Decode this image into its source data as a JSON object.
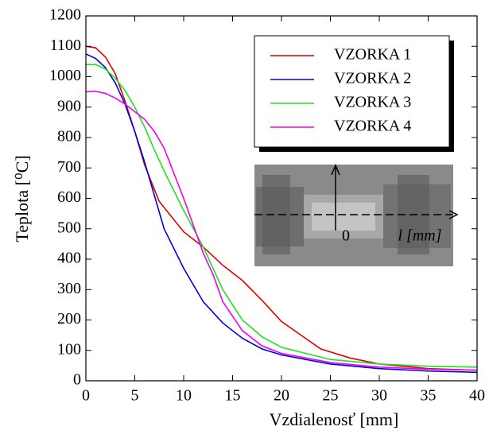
{
  "chart_data": {
    "type": "line",
    "xlabel": "Vzdialenosť [mm]",
    "ylabel": "Teplota [⁰C]",
    "xlim": [
      0,
      40
    ],
    "xticks": [
      0,
      5,
      10,
      15,
      20,
      25,
      30,
      35,
      40
    ],
    "ylim": [
      0,
      1200
    ],
    "yticks": [
      0,
      100,
      200,
      300,
      400,
      500,
      600,
      700,
      800,
      900,
      1000,
      1100,
      1200
    ],
    "grid": false,
    "legend": "upper right",
    "annotations": [
      "0",
      "l [mm]"
    ],
    "series": [
      {
        "name": "VZORKA  1",
        "color": "#e00000",
        "x": [
          0,
          1,
          2,
          3,
          4,
          5,
          6,
          7.5,
          10,
          12,
          14,
          16,
          18,
          20,
          22,
          24,
          27,
          30,
          35,
          40
        ],
        "values": [
          1100,
          1095,
          1065,
          1010,
          920,
          820,
          710,
          590,
          490,
          440,
          380,
          330,
          265,
          195,
          150,
          105,
          75,
          55,
          40,
          35
        ]
      },
      {
        "name": "VZORKA  2",
        "color": "#0000e0",
        "x": [
          0,
          1,
          2,
          3,
          4,
          5,
          6,
          7,
          8,
          10,
          12,
          14,
          16,
          18,
          20,
          25,
          30,
          35,
          40
        ],
        "values": [
          1075,
          1060,
          1030,
          980,
          910,
          820,
          720,
          610,
          500,
          370,
          260,
          190,
          140,
          105,
          85,
          55,
          40,
          32,
          28
        ]
      },
      {
        "name": "VZORKA  3",
        "color": "#20e020",
        "x": [
          0,
          1,
          2,
          3,
          4,
          5,
          6,
          7,
          8,
          10,
          12,
          14,
          16,
          18,
          20,
          25,
          30,
          35,
          40
        ],
        "values": [
          1040,
          1040,
          1025,
          995,
          955,
          900,
          835,
          760,
          690,
          560,
          440,
          300,
          200,
          145,
          110,
          70,
          55,
          48,
          45
        ]
      },
      {
        "name": "VZORKA  4",
        "color": "#f000f0",
        "x": [
          0,
          1,
          2,
          3,
          4,
          5,
          6,
          7,
          8,
          10,
          12,
          13,
          14,
          16,
          18,
          20,
          25,
          30,
          35,
          40
        ],
        "values": [
          950,
          952,
          945,
          930,
          910,
          885,
          860,
          820,
          765,
          600,
          420,
          350,
          260,
          165,
          115,
          90,
          60,
          45,
          38,
          35
        ]
      }
    ]
  }
}
